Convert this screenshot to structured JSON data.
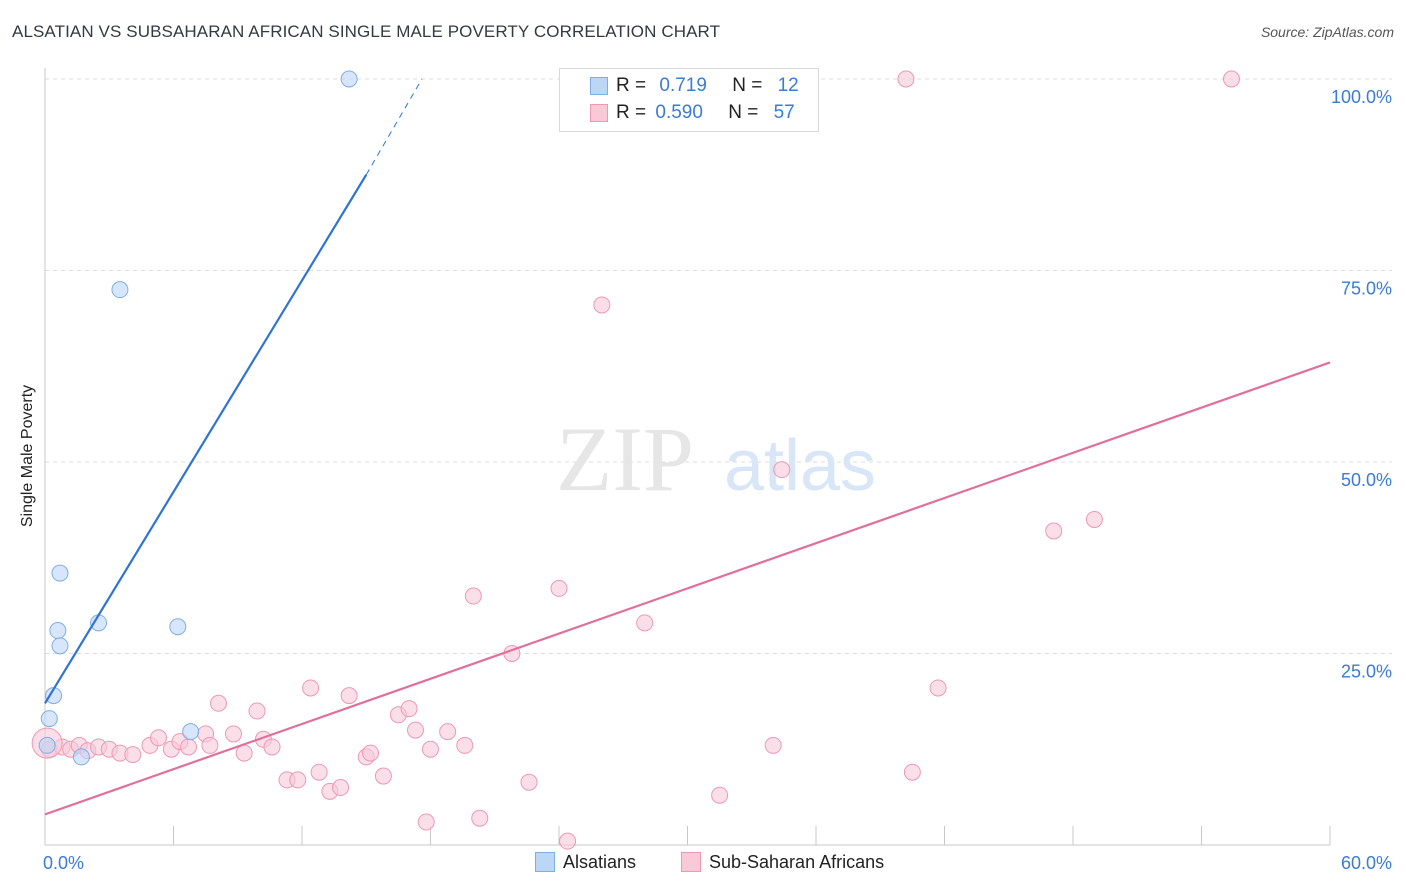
{
  "title": "ALSATIAN VS SUBSAHARAN AFRICAN SINGLE MALE POVERTY CORRELATION CHART",
  "source": "Source: ZipAtlas.com",
  "watermark": {
    "zip": "ZIP",
    "atlas": "atlas"
  },
  "legend_top": [
    {
      "r_label": "R =",
      "r_value": "0.719",
      "n_label": "N =",
      "n_value": "12"
    },
    {
      "r_label": "R =",
      "r_value": "0.590",
      "n_label": "N =",
      "n_value": "57"
    }
  ],
  "legend_bottom": [
    "Alsatians",
    "Sub-Saharan Africans"
  ],
  "colors": {
    "alsatians_fill": "#bcd6f6",
    "alsatians_stroke": "#7eaee6",
    "alsatians_line": "#2f74d0",
    "ssa_fill": "#f9c9d8",
    "ssa_stroke": "#ee98b4",
    "ssa_line": "#e0709a",
    "tick_label": "#3a7bd5",
    "grid": "#dcdcdc"
  },
  "chart_data": {
    "type": "scatter",
    "title": "ALSATIAN VS SUBSAHARAN AFRICAN SINGLE MALE POVERTY CORRELATION CHART",
    "xlabel": "",
    "ylabel": "Single Male Poverty",
    "xlim": [
      0,
      60
    ],
    "ylim": [
      0,
      100
    ],
    "x_tick_labels": [
      "0.0%",
      "60.0%"
    ],
    "y_tick_labels": [
      "25.0%",
      "50.0%",
      "75.0%",
      "100.0%"
    ],
    "y_ticks": [
      25,
      50,
      75,
      100
    ],
    "grid": true,
    "series": [
      {
        "name": "Alsatians",
        "points": [
          [
            0.1,
            13.0
          ],
          [
            0.2,
            16.5
          ],
          [
            0.4,
            19.5
          ],
          [
            0.6,
            28.0
          ],
          [
            0.7,
            26.0
          ],
          [
            0.7,
            35.5
          ],
          [
            1.7,
            11.5
          ],
          [
            2.5,
            29.0
          ],
          [
            3.5,
            72.5
          ],
          [
            6.2,
            28.5
          ],
          [
            6.8,
            14.8
          ],
          [
            14.2,
            100.0
          ]
        ],
        "trend": {
          "x": [
            0,
            15
          ],
          "y": [
            18.5,
            87.5
          ],
          "dashed_to": [
            17.6,
            100.0
          ]
        }
      },
      {
        "name": "Sub-Saharan Africans",
        "points": [
          [
            0.2,
            12.5
          ],
          [
            0.8,
            12.8
          ],
          [
            1.2,
            12.5
          ],
          [
            1.6,
            13.0
          ],
          [
            2.0,
            12.3
          ],
          [
            2.5,
            12.8
          ],
          [
            3.0,
            12.5
          ],
          [
            3.5,
            12.0
          ],
          [
            4.1,
            11.8
          ],
          [
            4.9,
            13.0
          ],
          [
            5.3,
            14.0
          ],
          [
            5.9,
            12.5
          ],
          [
            6.3,
            13.5
          ],
          [
            6.7,
            12.8
          ],
          [
            7.5,
            14.5
          ],
          [
            7.7,
            13.0
          ],
          [
            8.1,
            18.5
          ],
          [
            8.8,
            14.5
          ],
          [
            9.3,
            12.0
          ],
          [
            9.9,
            17.5
          ],
          [
            10.2,
            13.8
          ],
          [
            10.6,
            12.8
          ],
          [
            11.3,
            8.5
          ],
          [
            11.8,
            8.5
          ],
          [
            12.4,
            20.5
          ],
          [
            12.8,
            9.5
          ],
          [
            13.3,
            7.0
          ],
          [
            13.8,
            7.5
          ],
          [
            14.2,
            19.5
          ],
          [
            15.0,
            11.5
          ],
          [
            15.2,
            12.0
          ],
          [
            15.8,
            9.0
          ],
          [
            16.5,
            17.0
          ],
          [
            17.0,
            17.8
          ],
          [
            17.3,
            15.0
          ],
          [
            17.8,
            3.0
          ],
          [
            18.0,
            12.5
          ],
          [
            18.8,
            14.8
          ],
          [
            19.6,
            13.0
          ],
          [
            20.0,
            32.5
          ],
          [
            20.3,
            3.5
          ],
          [
            21.8,
            25.0
          ],
          [
            22.6,
            8.2
          ],
          [
            24.0,
            33.5
          ],
          [
            24.4,
            0.5
          ],
          [
            26.0,
            70.5
          ],
          [
            28.0,
            29.0
          ],
          [
            31.5,
            6.5
          ],
          [
            34.0,
            13.0
          ],
          [
            34.4,
            49.0
          ],
          [
            40.2,
            100.0
          ],
          [
            40.5,
            9.5
          ],
          [
            41.7,
            20.5
          ],
          [
            47.1,
            41.0
          ],
          [
            49.0,
            42.5
          ],
          [
            55.4,
            100.0
          ],
          [
            0.1,
            13.3
          ]
        ],
        "trend": {
          "x": [
            0,
            60
          ],
          "y": [
            4.0,
            63.0
          ]
        }
      }
    ]
  }
}
